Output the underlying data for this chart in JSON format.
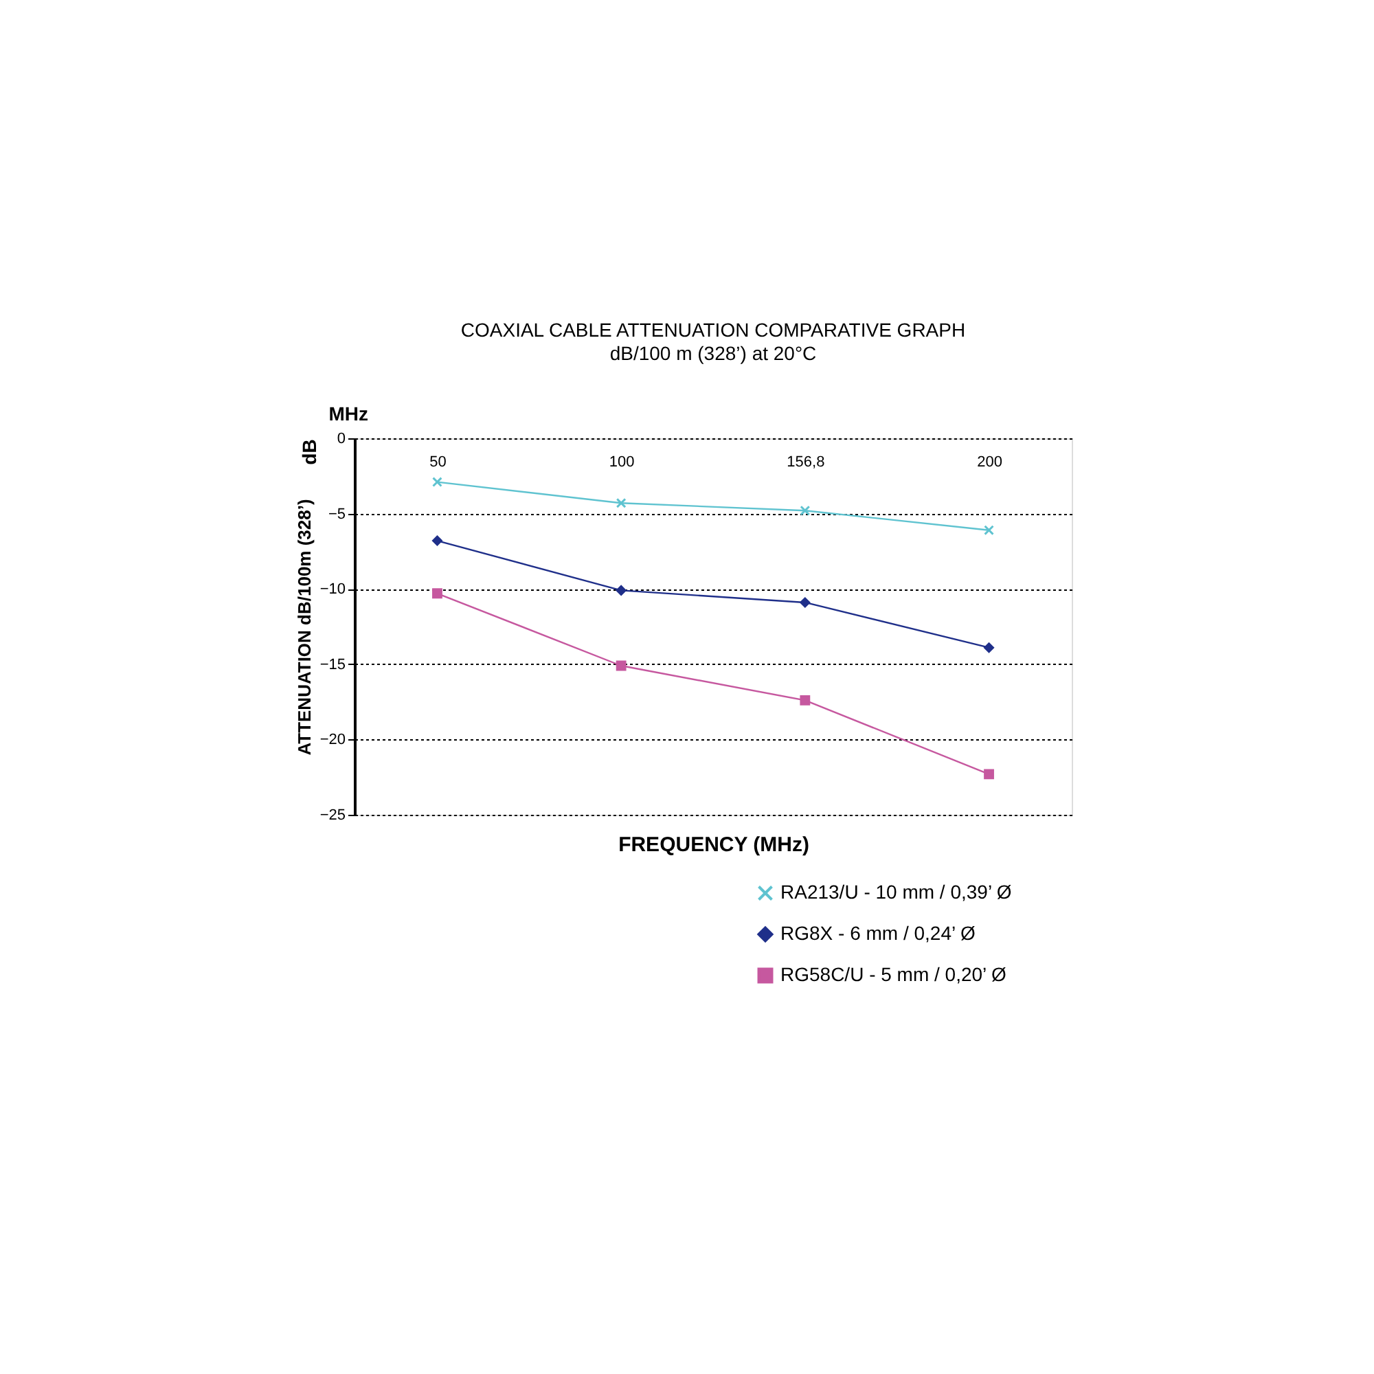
{
  "chart_data": {
    "type": "line",
    "title": "COAXIAL CABLE ATTENUATION COMPARATIVE GRAPH",
    "subtitle": "dB/100 m (328’) at 20°C",
    "xlabel": "FREQUENCY (MHz)",
    "ylabel": "ATTENUATION dB/100m (328’)",
    "annotations": [
      "MHz",
      "dB"
    ],
    "categories": [
      "50",
      "100",
      "156,8",
      "200"
    ],
    "ylim": [
      -25,
      0
    ],
    "yticks": [
      0,
      -5,
      -10,
      -15,
      -20,
      -25
    ],
    "grid": "y",
    "legend": "bottom right",
    "series": [
      {
        "name": "RA213/U - 10 mm / 0,39’ Ø",
        "color": "#5fc3d0",
        "marker": "cross",
        "values": [
          -2.9,
          -4.3,
          -4.8,
          -6.1
        ]
      },
      {
        "name": "RG8X - 6 mm / 0,24’ Ø",
        "color": "#1f2f8a",
        "marker": "diamond",
        "values": [
          -6.8,
          -10.1,
          -10.9,
          -13.9
        ]
      },
      {
        "name": "RG58C/U - 5 mm / 0,20’ Ø",
        "color": "#c6589f",
        "marker": "square",
        "values": [
          -10.3,
          -15.1,
          -17.4,
          -22.3
        ]
      }
    ]
  }
}
